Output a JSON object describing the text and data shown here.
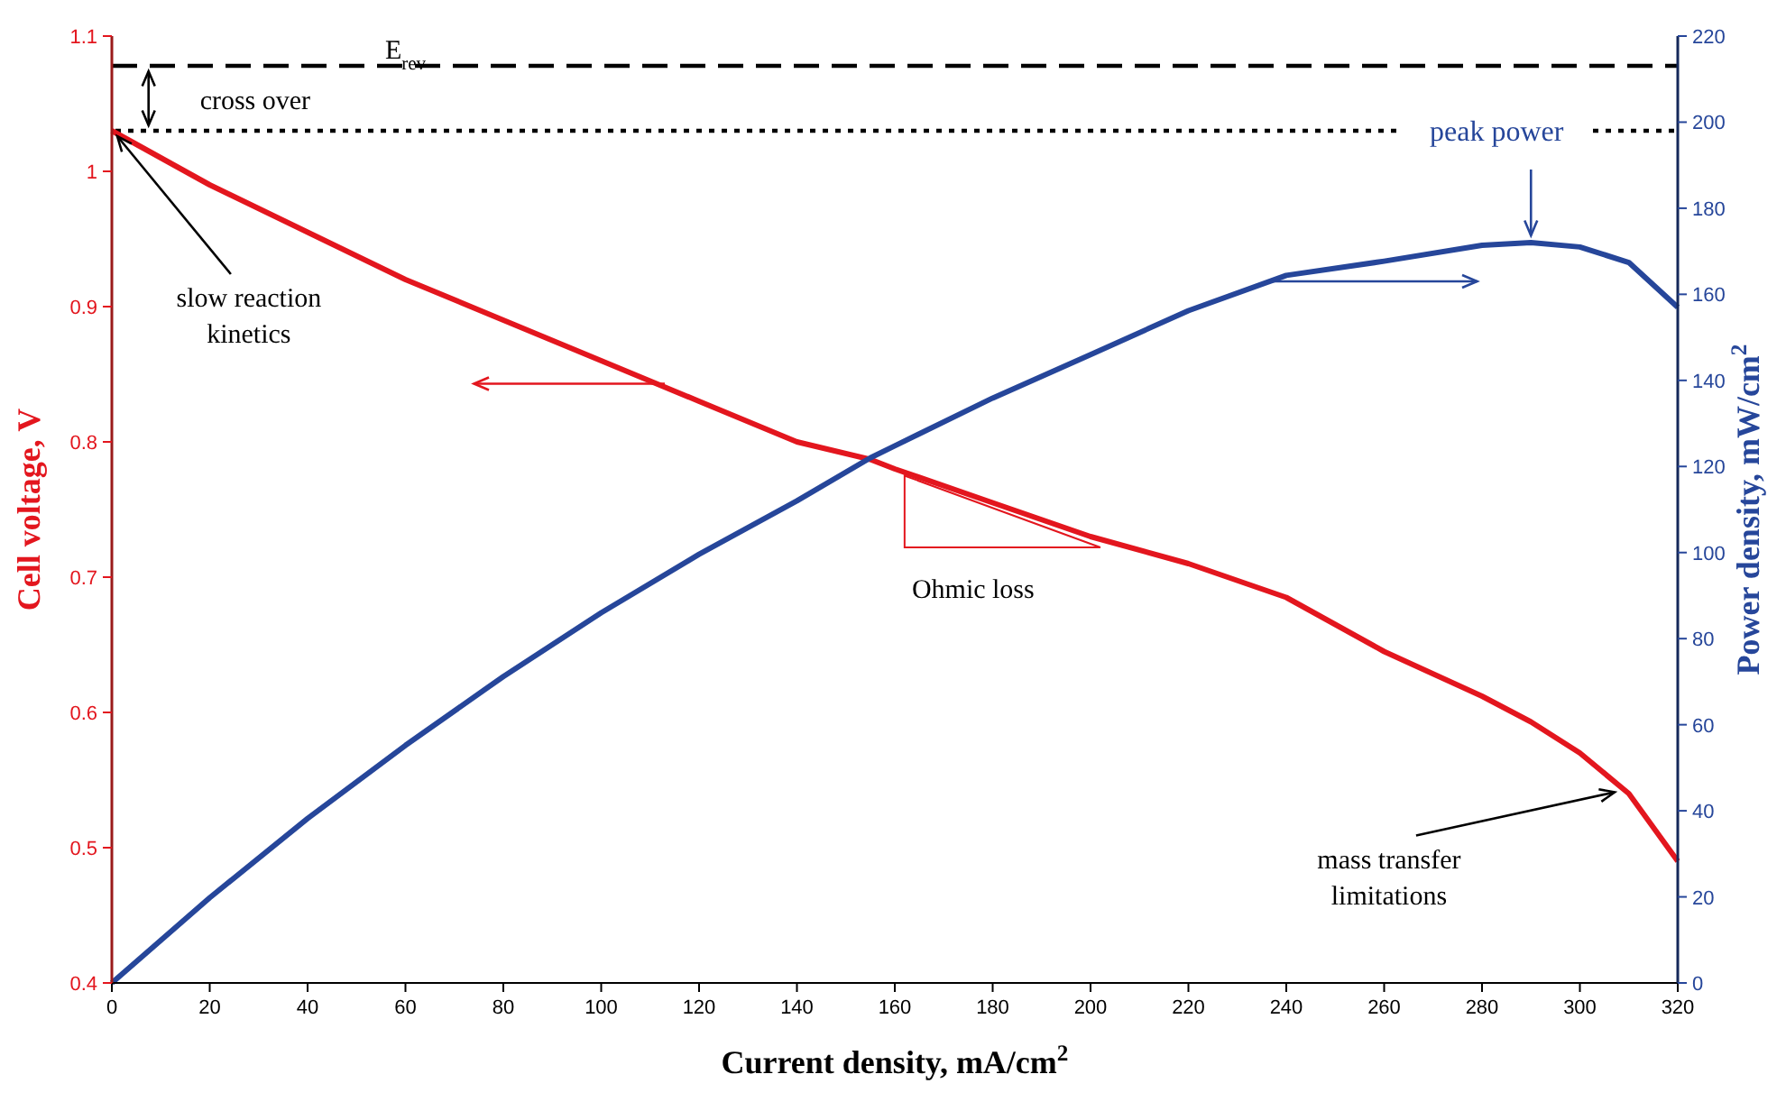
{
  "chart_data": {
    "type": "line",
    "xlabel": "Current density, mA/cm$^{2}$",
    "ylabel": "Cell voltage, V",
    "y2label": "Power density, mW/cm$^{2}$",
    "x": [
      0,
      20,
      40,
      60,
      80,
      100,
      120,
      140,
      155,
      160,
      180,
      200,
      220,
      240,
      260,
      280,
      290,
      300,
      310,
      320
    ],
    "series": [
      {
        "color": "#e3161e",
        "values": [
          1.03,
          0.99,
          0.955,
          0.92,
          0.89,
          0.86,
          0.83,
          0.8,
          0.787,
          0.78,
          0.755,
          0.73,
          0.71,
          0.685,
          0.645,
          0.612,
          0.593,
          0.57,
          0.54,
          0.49
        ]
      },
      {
        "color": "#26469a",
        "axis": "y2",
        "values": [
          0,
          19.8,
          38.2,
          55.2,
          71.2,
          86,
          99.6,
          112,
          122,
          124.8,
          135.9,
          146,
          156.2,
          164.4,
          167.7,
          171.4,
          172,
          171,
          167.4,
          157
        ]
      }
    ],
    "xlim": [
      0,
      320
    ],
    "xticks": [
      0,
      20,
      40,
      60,
      80,
      100,
      120,
      140,
      160,
      180,
      200,
      220,
      240,
      260,
      280,
      300,
      320
    ],
    "ylim": [
      0.4,
      1.1
    ],
    "yticks": [
      0.4,
      0.5,
      0.6,
      0.7,
      0.8,
      0.9,
      1,
      1.1
    ],
    "y2lim": [
      0,
      220
    ],
    "y2ticks": [
      0,
      20,
      40,
      60,
      80,
      100,
      120,
      140,
      160,
      180,
      200,
      220
    ],
    "line_style": "solid",
    "marker": "none",
    "ref_lines": [
      {
        "axis": "y",
        "value": 1.078,
        "label": "E$_{rev}$",
        "color": "#000000",
        "line_style": "dashed"
      },
      {
        "axis": "y",
        "value": 1.03,
        "color": "#000000",
        "line_style": "dotted"
      }
    ],
    "annotations": [
      {
        "text": "slow reaction kinetics",
        "x": 0,
        "y": 1.03
      },
      {
        "text": "mass transfer limitations",
        "x": 306,
        "y": 0.545
      },
      "Ohmic loss",
      "peak power",
      "cross over"
    ]
  }
}
